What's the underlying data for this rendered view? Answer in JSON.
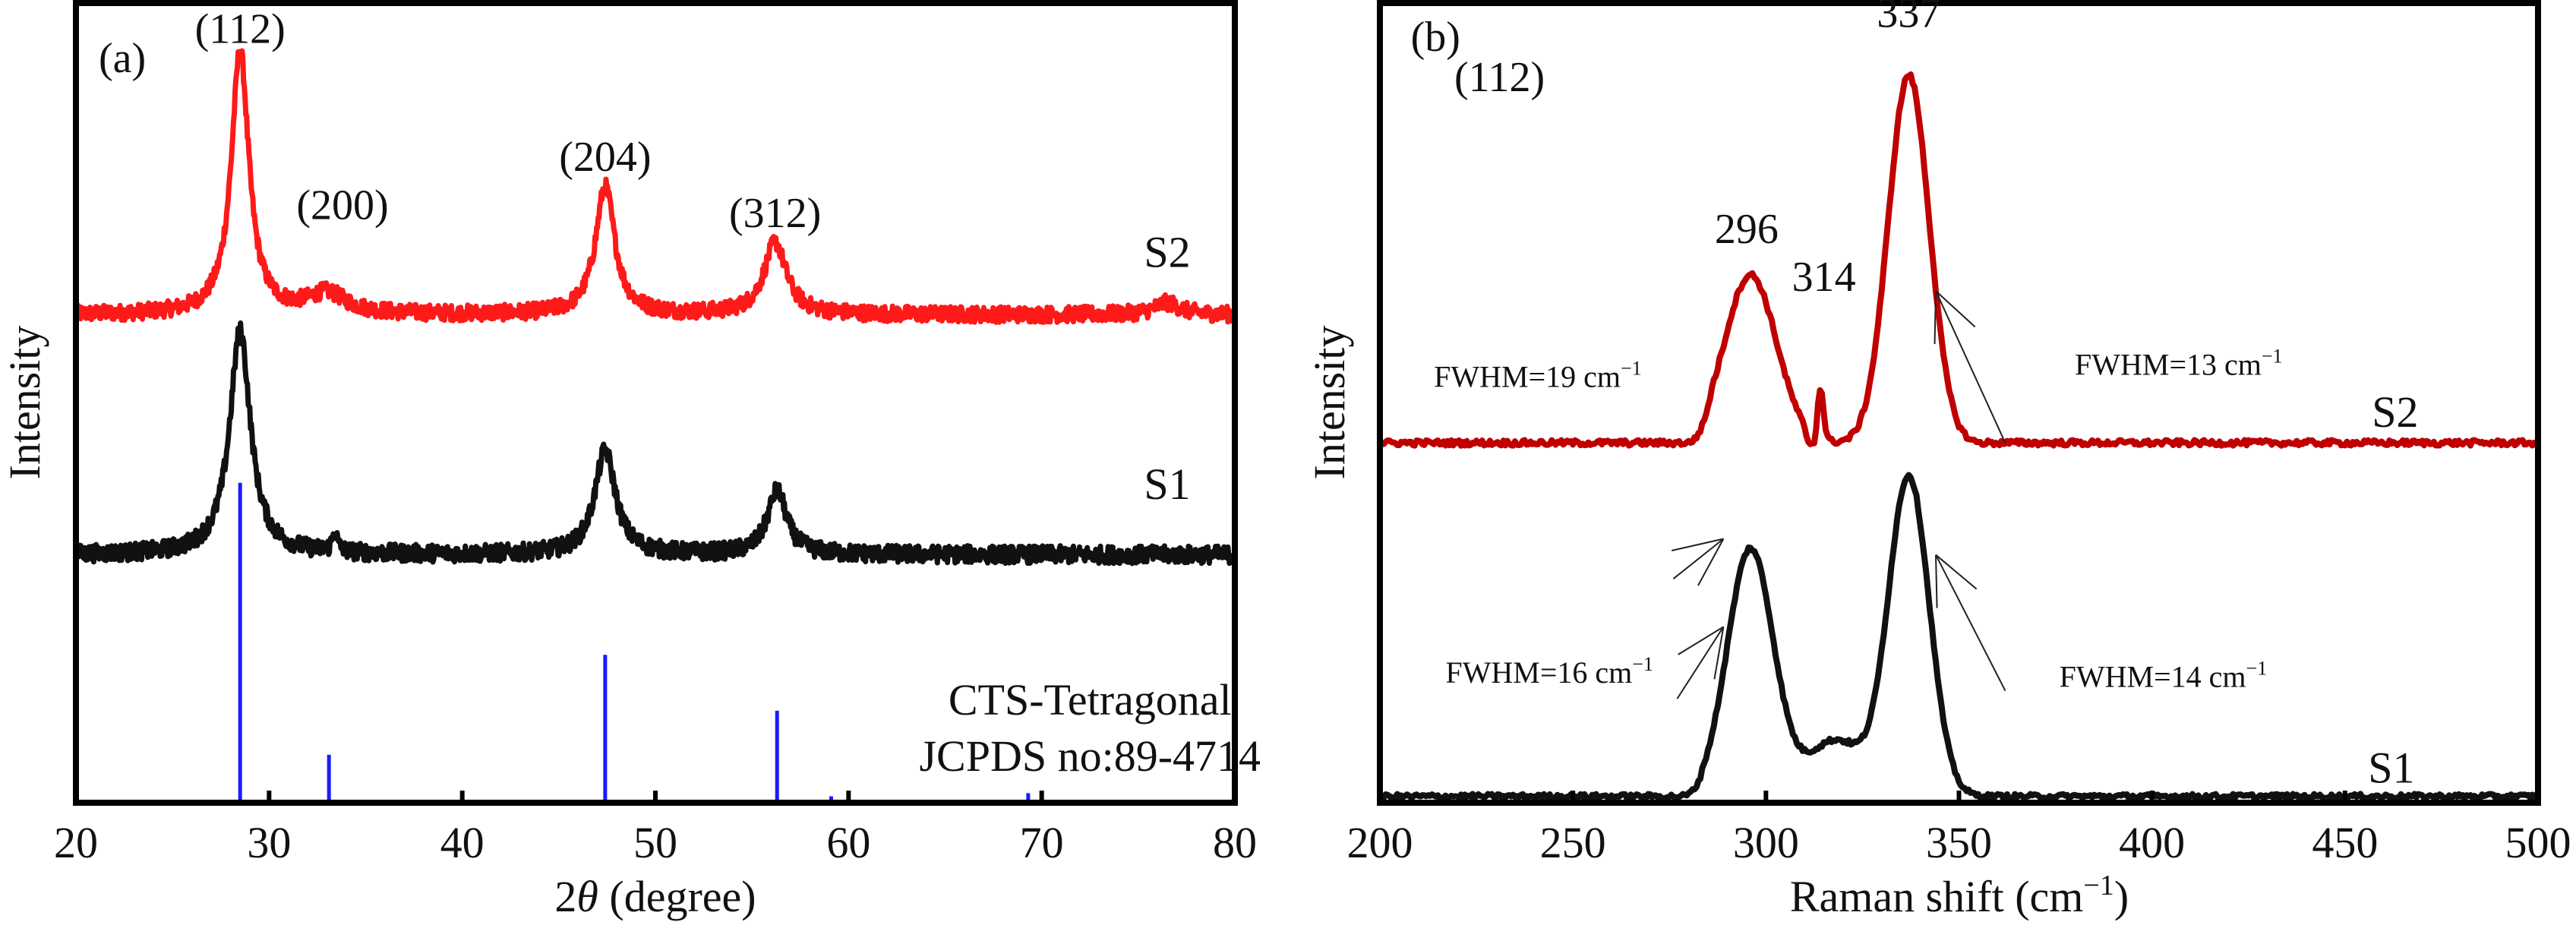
{
  "chart_data": [
    {
      "panel": "(a)",
      "type": "line",
      "xlabel": "2θ (degree)",
      "xlabel_prefix": "2",
      "xlabel_theta": "θ",
      "xlabel_suffix": " (degree)",
      "ylabel": "Intensity",
      "xlim": [
        20,
        80
      ],
      "ylim": [
        0,
        100
      ],
      "xticks": [
        20,
        30,
        40,
        50,
        60,
        70,
        80
      ],
      "grid": false,
      "legend": "none",
      "series": [
        {
          "name": "S2",
          "color": "#ff1a1a",
          "baseline": 61,
          "noise": 1.0,
          "peaks": [
            {
              "x": 28.5,
              "height": 33,
              "width": 0.55
            },
            {
              "x": 33.0,
              "height": 2.5,
              "width": 1.2
            },
            {
              "x": 47.4,
              "height": 16,
              "width": 0.6
            },
            {
              "x": 56.2,
              "height": 9,
              "width": 0.7
            },
            {
              "x": 76.5,
              "height": 1.5,
              "width": 0.8
            }
          ]
        },
        {
          "name": "S1",
          "color": "#111111",
          "baseline": 31,
          "noise": 1.1,
          "peaks": [
            {
              "x": 28.5,
              "height": 28,
              "width": 0.65
            },
            {
              "x": 33.4,
              "height": 2.5,
              "width": 0.15
            },
            {
              "x": 47.4,
              "height": 13,
              "width": 0.65
            },
            {
              "x": 56.3,
              "height": 8,
              "width": 0.6
            }
          ]
        }
      ],
      "reference": {
        "name": "CTS-Tetragonal JCPDS no:89-4714",
        "color": "#1a1aff",
        "lines": [
          {
            "x": 28.5,
            "intensity": 40
          },
          {
            "x": 33.1,
            "intensity": 6
          },
          {
            "x": 47.4,
            "intensity": 18.5
          },
          {
            "x": 56.3,
            "intensity": 11.5
          },
          {
            "x": 59.1,
            "intensity": 0.8
          },
          {
            "x": 69.3,
            "intensity": 1.2
          }
        ]
      },
      "annotations": [
        {
          "text": "(112)",
          "x": 28.5,
          "y": 95
        },
        {
          "text": "(200)",
          "x": 33.8,
          "y": 73
        },
        {
          "text": "(204)",
          "x": 47.4,
          "y": 79
        },
        {
          "text": "(312)",
          "x": 56.2,
          "y": 72
        },
        {
          "text": "S2",
          "x": 76.5,
          "y": 67
        },
        {
          "text": "S1",
          "x": 76.5,
          "y": 38
        },
        {
          "text": "CTS-Tetragonal",
          "x": 72.5,
          "y": 11
        },
        {
          "text": "JCPDS no:89-4714",
          "x": 72.5,
          "y": 4
        }
      ]
    },
    {
      "panel": "(b)",
      "type": "line",
      "xlabel": "Raman shift (cm⁻¹)",
      "xlabel_main": "Raman shift (cm",
      "xlabel_sup": "−1",
      "xlabel_end": ")",
      "ylabel": "Intensity",
      "xlim": [
        200,
        500
      ],
      "ylim": [
        0,
        100
      ],
      "xticks": [
        200,
        250,
        300,
        350,
        400,
        450,
        500
      ],
      "grid": false,
      "legend": "none",
      "series": [
        {
          "name": "S2",
          "color": "#c00000",
          "baseline": 45,
          "noise": 0.35,
          "range": [
            280,
            358
          ],
          "peaks": [
            {
              "x": 296,
              "height": 21,
              "width": 9.5
            },
            {
              "x": 314,
              "height": 7,
              "width": 1.2
            },
            {
              "x": 337,
              "height": 46,
              "width": 7.5
            }
          ],
          "dip": {
            "x": 312,
            "depth": 4,
            "width": 1.5
          }
        },
        {
          "name": "S1",
          "color": "#111111",
          "baseline": 0.8,
          "noise": 0.3,
          "range": [
            278,
            362
          ],
          "peaks": [
            {
              "x": 296,
              "height": 31,
              "width": 8.5
            },
            {
              "x": 337,
              "height": 40,
              "width": 7.5
            },
            {
              "x": 318,
              "height": 7,
              "width": 10
            }
          ]
        }
      ],
      "annotations": [
        {
          "text": "(b)",
          "x": 208,
          "y": 94
        },
        {
          "text": "(112)",
          "x": 231,
          "y": 89
        },
        {
          "text": "337",
          "x": 337,
          "y": 97
        },
        {
          "text": "296",
          "x": 295,
          "y": 70
        },
        {
          "text": "314",
          "x": 315,
          "y": 64
        },
        {
          "text": "FWHM=19 cm⁻¹",
          "x": 214,
          "y": 52,
          "sup": "−1",
          "base": "FWHM=19 cm"
        },
        {
          "text": "FWHM=13 cm⁻¹",
          "x": 380,
          "y": 53.5,
          "sup": "−1",
          "base": "FWHM=13 cm"
        },
        {
          "text": "FWHM=16 cm⁻¹",
          "x": 217,
          "y": 15,
          "sup": "−1",
          "base": "FWHM=16 cm"
        },
        {
          "text": "FWHM=14 cm⁻¹",
          "x": 376,
          "y": 14.5,
          "sup": "−1",
          "base": "FWHM=14 cm"
        },
        {
          "text": "S2",
          "x": 463,
          "y": 47
        },
        {
          "text": "S1",
          "x": 462,
          "y": 2.5
        }
      ],
      "fwhm_pointers": [
        {
          "series": "S2",
          "at": [
            289,
            33
          ],
          "to": [
            276,
            28
          ]
        },
        {
          "series": "S2",
          "at": [
            344,
            64
          ],
          "to": [
            362,
            45
          ]
        },
        {
          "series": "S1",
          "at": [
            289,
            22
          ],
          "to": [
            277,
            13
          ]
        },
        {
          "series": "S1",
          "at": [
            344,
            31
          ],
          "to": [
            362,
            14
          ]
        }
      ]
    }
  ]
}
